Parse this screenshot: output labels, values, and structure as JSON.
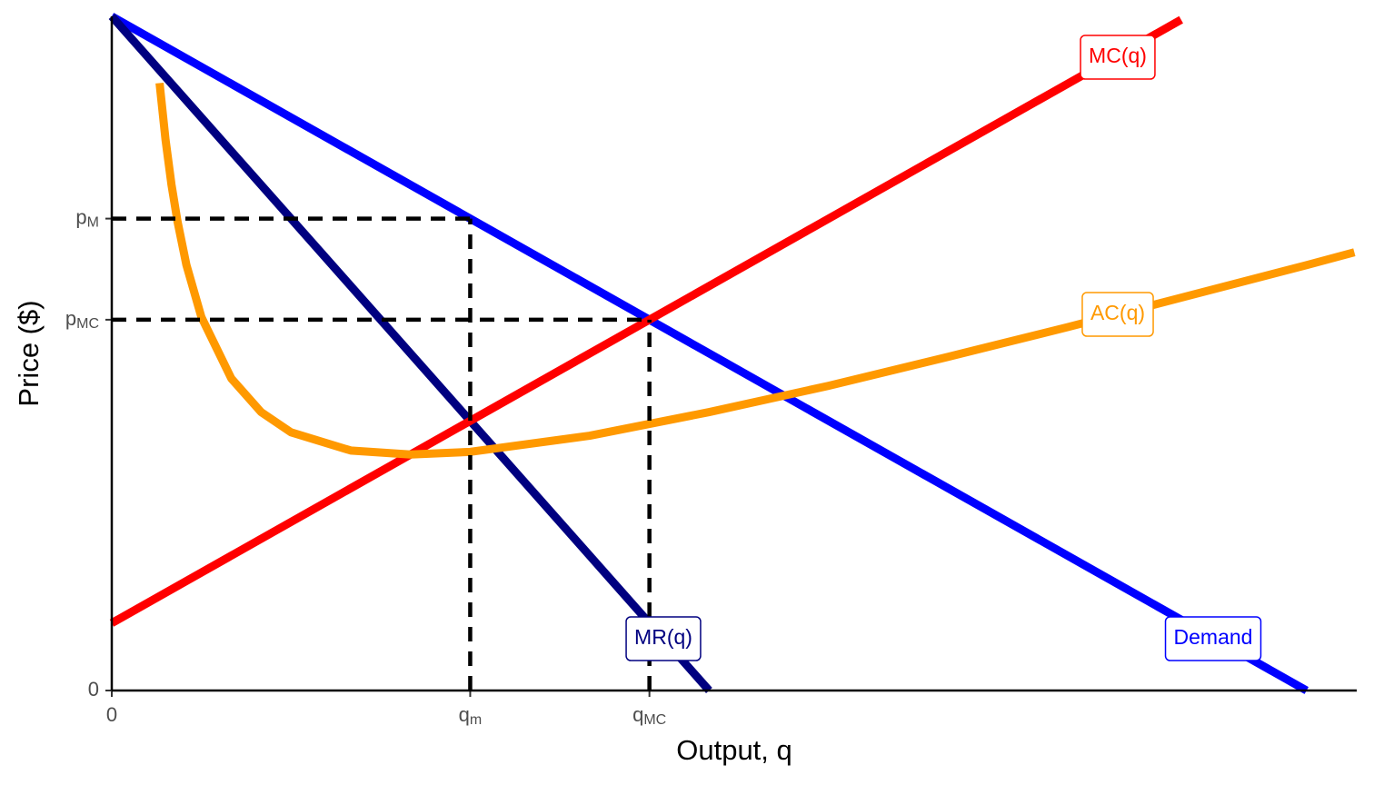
{
  "chart_data": {
    "type": "line",
    "y_label": "Price ($)",
    "x_label": "Output, q",
    "xlim": [
      0,
      20.84
    ],
    "ylim": [
      0,
      10
    ],
    "xticks": [
      0,
      {
        "value": 6,
        "label": "q",
        "subscript": "m"
      },
      {
        "value": 9,
        "label": "q",
        "subscript": "MC"
      }
    ],
    "yticks": [
      0,
      {
        "value": 5.5,
        "label": "p",
        "subscript": "MC"
      },
      {
        "value": 7,
        "label": "p",
        "subscript": "M"
      }
    ],
    "series": [
      {
        "name": "Demand",
        "color": "#0000ff",
        "x": [
          0,
          20
        ],
        "values": [
          10,
          0
        ]
      },
      {
        "name": "MR(q)",
        "color": "#000080",
        "x": [
          0,
          10
        ],
        "values": [
          10,
          0
        ]
      },
      {
        "name": "MC(q)",
        "color": "#ff0000",
        "x": [
          0,
          17.9
        ],
        "values": [
          1,
          9.95
        ]
      },
      {
        "name": "AC(q)",
        "color": "#ff9900",
        "x": [
          0.8,
          0.9,
          1,
          1.1,
          1.25,
          1.5,
          2,
          2.5,
          3,
          4,
          5,
          6,
          8,
          10,
          12,
          14,
          16,
          18,
          20,
          20.8
        ],
        "values": [
          9.01,
          8.17,
          7.5,
          6.96,
          6.31,
          5.54,
          4.63,
          4.13,
          3.83,
          3.56,
          3.5,
          3.54,
          3.78,
          4.13,
          4.52,
          4.95,
          5.39,
          5.85,
          6.31,
          6.5
        ]
      }
    ],
    "guides": [
      {
        "x": 6,
        "y": 7
      },
      {
        "x": 9,
        "y": 5.5
      }
    ]
  }
}
